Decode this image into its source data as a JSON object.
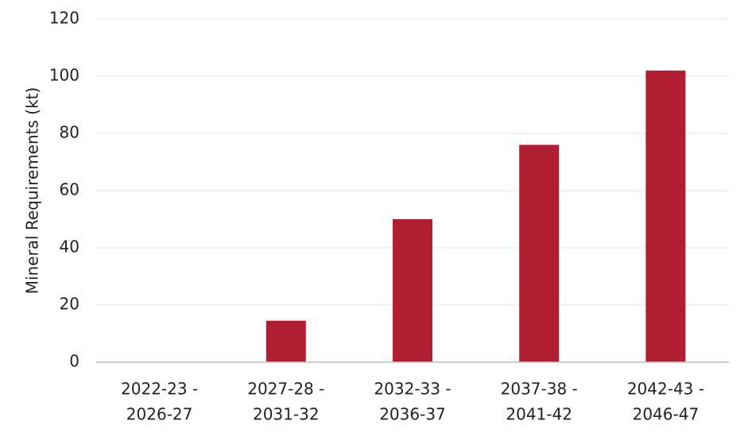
{
  "chart_data": {
    "type": "bar",
    "y_label": "Mineral Requirements (kt)",
    "categories": [
      [
        "2022-23 -",
        "2026-27"
      ],
      [
        "2027-28 -",
        "2031-32"
      ],
      [
        "2032-33 -",
        "2036-37"
      ],
      [
        "2037-38 -",
        "2041-42"
      ],
      [
        "2042-43 -",
        "2046-47"
      ]
    ],
    "values": [
      0,
      14.5,
      50,
      76,
      102
    ],
    "color": "#b01e32",
    "ylim": [
      0,
      120
    ],
    "yticks": [
      0,
      20,
      40,
      60,
      80,
      100,
      120
    ],
    "grid": true
  }
}
